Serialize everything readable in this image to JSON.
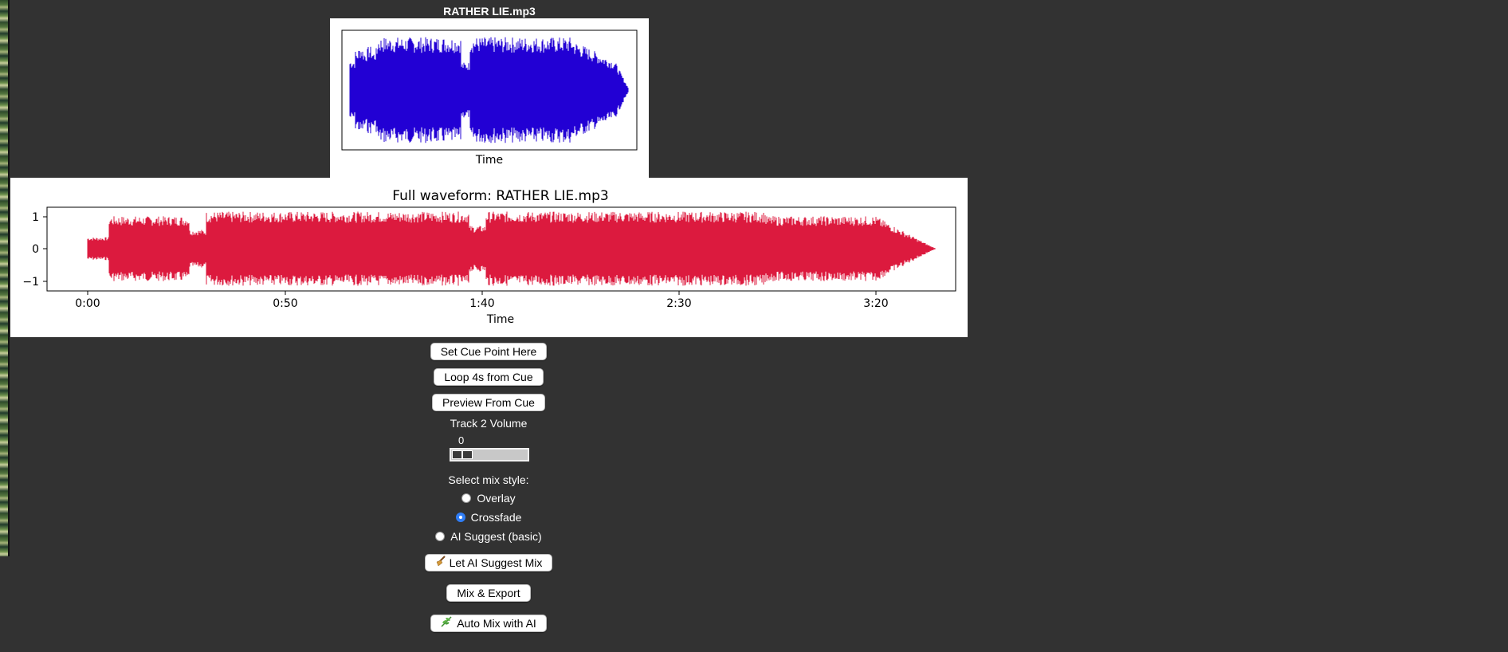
{
  "small_plot": {
    "title": "RATHER LIE.mp3",
    "xlabel": "Time",
    "wave_color": "#2200d4"
  },
  "full_plot": {
    "title": "Full waveform: RATHER LIE.mp3",
    "xlabel": "Time",
    "wave_color": "#dc1a3e",
    "yticks": [
      "1",
      "0",
      "−1"
    ],
    "xticks": [
      "0:00",
      "0:50",
      "1:40",
      "2:30",
      "3:20"
    ]
  },
  "controls": {
    "set_cue_label": "Set Cue Point Here",
    "loop_label": "Loop 4s from Cue",
    "preview_label": "Preview From Cue",
    "volume_label": "Track 2 Volume",
    "volume_value": "0",
    "mix_style_label": "Select mix style:",
    "mix_options": [
      "Overlay",
      "Crossfade",
      "AI Suggest (basic)"
    ],
    "selected_mix": "Crossfade",
    "ai_suggest_label": "Let AI Suggest Mix",
    "ai_suggest_icon": "broom-icon",
    "mix_export_label": "Mix & Export",
    "auto_mix_label": "Auto Mix with AI",
    "auto_mix_icon": "herb-icon"
  }
}
